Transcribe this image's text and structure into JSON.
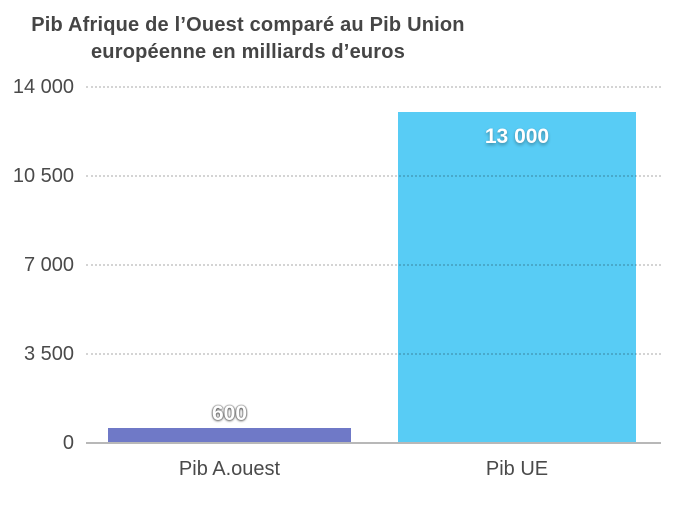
{
  "title": {
    "line1": "Pib Afrique de l’Ouest comparé au Pib Union",
    "line2": "européenne en milliards d’euros"
  },
  "chart_data": {
    "type": "bar",
    "title": "Pib Afrique de l’Ouest comparé au Pib Union européenne en milliards d’euros",
    "categories": [
      "Pib A.ouest",
      "Pib UE"
    ],
    "values": [
      600,
      13000
    ],
    "value_labels": [
      "600",
      "13 000"
    ],
    "ylim": [
      0,
      14000
    ],
    "ytick_labels": [
      "0",
      "3 500",
      "7 000",
      "10 500",
      "14 000"
    ],
    "grid": "horizontal-dotted",
    "legend": "none",
    "bar_colors": [
      "#6F79C7",
      "#58CCF5"
    ],
    "background_color": "#FFFFFF",
    "text_color": "#4A4A4A"
  }
}
